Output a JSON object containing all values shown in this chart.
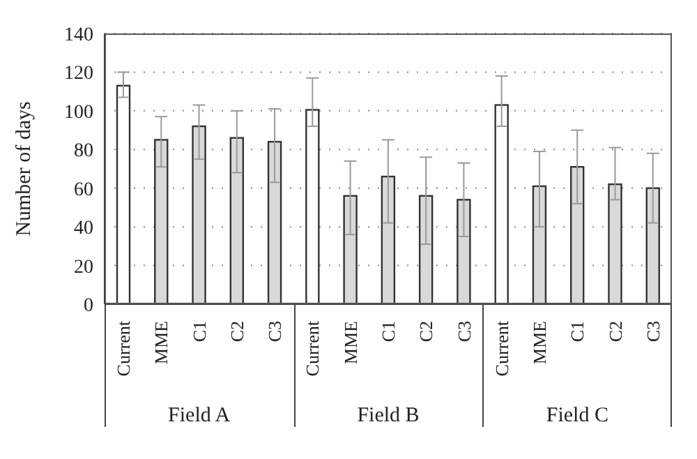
{
  "chart_data": {
    "type": "bar",
    "ylabel": "Number of days",
    "categories": [
      "Current",
      "MME",
      "C1",
      "C2",
      "C3",
      "Current",
      "MME",
      "C1",
      "C2",
      "C3",
      "Current",
      "MME",
      "C1",
      "C2",
      "C3"
    ],
    "values": [
      113,
      85,
      92,
      86,
      84,
      100.5,
      56,
      66,
      56,
      54,
      103,
      61,
      71,
      62,
      60
    ],
    "errors": [
      [
        107,
        120
      ],
      [
        71,
        97
      ],
      [
        75,
        103
      ],
      [
        68,
        100
      ],
      [
        63,
        101
      ],
      [
        92,
        117
      ],
      [
        36,
        74
      ],
      [
        42,
        85
      ],
      [
        31,
        76
      ],
      [
        35,
        73
      ],
      [
        92,
        118
      ],
      [
        40,
        79
      ],
      [
        52,
        90
      ],
      [
        54,
        81
      ],
      [
        42,
        78
      ]
    ],
    "colors": [
      "#ffffff",
      "#d9d9d9",
      "#d9d9d9",
      "#d9d9d9",
      "#d9d9d9",
      "#ffffff",
      "#d9d9d9",
      "#d9d9d9",
      "#d9d9d9",
      "#d9d9d9",
      "#ffffff",
      "#d9d9d9",
      "#d9d9d9",
      "#d9d9d9",
      "#d9d9d9"
    ],
    "annotations": [
      "Field A",
      "Field B",
      "Field C"
    ],
    "ylim": [
      0,
      140
    ],
    "yticks": [
      0,
      20,
      40,
      60,
      80,
      100,
      120,
      140
    ],
    "grid": "y"
  }
}
